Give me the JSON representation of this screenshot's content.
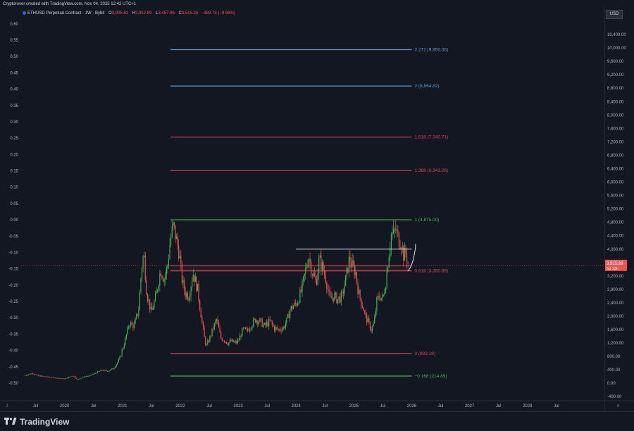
{
  "header": {
    "credit": "Cryptorover created with TradingView.com, Nov 04, 2025 12:42 UTC+1",
    "symbol": "ETHUSD Perpetual Contract · 1W · Bybit",
    "ohlc": [
      {
        "label": "O",
        "value": "3,905.61"
      },
      {
        "label": "H",
        "value": "3,912.89"
      },
      {
        "label": "L",
        "value": "3,457.96"
      },
      {
        "label": "C",
        "value": "3,515.26"
      }
    ],
    "change": "−389.75 (−9.98%)",
    "currency_badge": "USD"
  },
  "colors": {
    "background": "#131722",
    "up": "#26a69a",
    "up_bright": "#4caf50",
    "down": "#ef5350",
    "blue_level": "#5b9bd5",
    "red_level": "#e0435a",
    "green_level": "#4caf50",
    "white_level": "#e0e3eb",
    "current_price_tag": "#ef5350"
  },
  "corners": {
    "left": "2",
    "right": "6"
  },
  "footer": {
    "brand": "TradingView",
    "brand_icon": "tradingview-logo-icon"
  },
  "chart_data": {
    "type": "candlestick",
    "title": "ETHUSD Perpetual Contract · 1W · Bybit",
    "right_axis": {
      "unit": "USD",
      "range": [
        -500,
        10800
      ],
      "ticks": [
        "10,400.00",
        "10,000.00",
        "9,600.00",
        "9,200.00",
        "8,800.00",
        "8,400.00",
        "8,000.00",
        "7,600.00",
        "7,200.00",
        "6,800.00",
        "6,400.00",
        "6,000.00",
        "5,600.00",
        "5,200.00",
        "4,800.00",
        "4,400.00",
        "4,000.00",
        "3,600.00",
        "3,200.00",
        "2,800.00",
        "2,400.00",
        "2,000.00",
        "1,600.00",
        "1,200.00",
        "800.00",
        "400.00",
        "0.00",
        "-400.00"
      ],
      "tick_values": [
        10400,
        10000,
        9600,
        9200,
        8800,
        8400,
        8000,
        7600,
        7200,
        6800,
        6400,
        6000,
        5600,
        5200,
        4800,
        4400,
        4000,
        3600,
        3200,
        2800,
        2400,
        2000,
        1600,
        1200,
        800,
        400,
        0,
        -400
      ],
      "last_price_tag": "3,515.26",
      "last_price_countdown": "5d 13h",
      "last_price": 3515.26
    },
    "left_axis": {
      "ticks": [
        "0.60",
        "0.55",
        "0.50",
        "0.45",
        "0.40",
        "0.35",
        "0.30",
        "0.25",
        "0.20",
        "0.15",
        "0.10",
        "0.05",
        "0.00",
        "-0.05",
        "-0.10",
        "-0.15",
        "-0.20",
        "-0.25",
        "-0.30",
        "-0.35",
        "-0.40",
        "-0.45",
        "-0.50"
      ],
      "tick_values": [
        0.6,
        0.55,
        0.5,
        0.45,
        0.4,
        0.35,
        0.3,
        0.25,
        0.2,
        0.15,
        0.1,
        0.05,
        0.0,
        -0.05,
        -0.1,
        -0.15,
        -0.2,
        -0.25,
        -0.3,
        -0.35,
        -0.4,
        -0.45,
        -0.5
      ]
    },
    "x_axis": {
      "range": [
        2019.25,
        2029.33
      ],
      "ticks": [
        {
          "label": "Jul",
          "t": 2019.5
        },
        {
          "label": "2020",
          "t": 2020.0
        },
        {
          "label": "Jul",
          "t": 2020.5
        },
        {
          "label": "2021",
          "t": 2021.0
        },
        {
          "label": "Jul",
          "t": 2021.5
        },
        {
          "label": "2022",
          "t": 2022.0
        },
        {
          "label": "Jul",
          "t": 2022.5
        },
        {
          "label": "2023",
          "t": 2023.0
        },
        {
          "label": "Jul",
          "t": 2023.5
        },
        {
          "label": "2024",
          "t": 2024.0
        },
        {
          "label": "Jul",
          "t": 2024.5
        },
        {
          "label": "2025",
          "t": 2025.0
        },
        {
          "label": "Jul",
          "t": 2025.5
        },
        {
          "label": "2026",
          "t": 2026.0
        },
        {
          "label": "Jul",
          "t": 2026.5
        },
        {
          "label": "2027",
          "t": 2027.0
        },
        {
          "label": "Jul",
          "t": 2027.5
        },
        {
          "label": "2028",
          "t": 2028.0
        },
        {
          "label": "Jul",
          "t": 2028.5
        }
      ]
    },
    "fib_levels": [
      {
        "label": "2.272 (9,950.05)",
        "price": 9950.05,
        "color": "blue_level",
        "label_color": "blue_level"
      },
      {
        "label": "2 (8,864.82)",
        "price": 8864.82,
        "color": "blue_level",
        "label_color": "blue_level"
      },
      {
        "label": "1.618 (7,340.71)",
        "price": 7340.71,
        "color": "red_level",
        "label_color": "red_level"
      },
      {
        "label": "1.368 (6,343.26)",
        "price": 6343.26,
        "color": "red_level",
        "label_color": "red_level"
      },
      {
        "label": "1 (4,875.00)",
        "price": 4875.0,
        "color": "green_level",
        "label_color": "green_level"
      },
      {
        "label": "0.618 (3,350.89)",
        "price": 3350.89,
        "color": "red_level",
        "label_color": "red_level"
      },
      {
        "label": "0 (883.18)",
        "price": 883.18,
        "color": "red_level",
        "label_color": "red_level"
      },
      {
        "label": "−0.168 (214.89)",
        "price": 214.89,
        "color": "green_level",
        "label_color": "green_level"
      }
    ],
    "fib_range": {
      "t_start": 2021.83,
      "t_end": 2026.0
    },
    "support_band": {
      "top": 3515.0,
      "bottom": 3350.89
    },
    "resistance_line": {
      "price": 4000.0,
      "t_start": 2024.0,
      "t_end": 2026.0
    },
    "projection_path": [
      [
        2025.93,
        3350
      ],
      [
        2026.0,
        3450
      ],
      [
        2026.04,
        3800
      ],
      [
        2026.06,
        4150
      ]
    ],
    "weekly_close_path": [
      [
        2019.3,
        230
      ],
      [
        2019.45,
        300
      ],
      [
        2019.55,
        220
      ],
      [
        2019.7,
        190
      ],
      [
        2019.85,
        160
      ],
      [
        2020.0,
        130
      ],
      [
        2020.15,
        230
      ],
      [
        2020.22,
        110
      ],
      [
        2020.35,
        200
      ],
      [
        2020.45,
        230
      ],
      [
        2020.55,
        320
      ],
      [
        2020.65,
        390
      ],
      [
        2020.75,
        360
      ],
      [
        2020.85,
        450
      ],
      [
        2020.95,
        730
      ],
      [
        2021.05,
        1300
      ],
      [
        2021.12,
        1800
      ],
      [
        2021.2,
        1700
      ],
      [
        2021.28,
        2200
      ],
      [
        2021.33,
        3400
      ],
      [
        2021.37,
        3900
      ],
      [
        2021.42,
        2700
      ],
      [
        2021.5,
        2100
      ],
      [
        2021.58,
        2600
      ],
      [
        2021.66,
        3400
      ],
      [
        2021.72,
        3100
      ],
      [
        2021.78,
        3500
      ],
      [
        2021.83,
        4300
      ],
      [
        2021.88,
        4700
      ],
      [
        2021.93,
        4300
      ],
      [
        2021.98,
        3900
      ],
      [
        2022.03,
        3100
      ],
      [
        2022.08,
        2700
      ],
      [
        2022.15,
        2600
      ],
      [
        2022.22,
        3300
      ],
      [
        2022.3,
        2800
      ],
      [
        2022.37,
        1900
      ],
      [
        2022.42,
        1300
      ],
      [
        2022.45,
        1100
      ],
      [
        2022.52,
        1400
      ],
      [
        2022.58,
        1700
      ],
      [
        2022.63,
        1900
      ],
      [
        2022.7,
        1350
      ],
      [
        2022.75,
        1300
      ],
      [
        2022.82,
        1200
      ],
      [
        2022.88,
        1250
      ],
      [
        2022.95,
        1200
      ],
      [
        2023.0,
        1250
      ],
      [
        2023.08,
        1600
      ],
      [
        2023.15,
        1550
      ],
      [
        2023.25,
        1800
      ],
      [
        2023.3,
        1900
      ],
      [
        2023.38,
        1850
      ],
      [
        2023.45,
        1700
      ],
      [
        2023.55,
        1850
      ],
      [
        2023.62,
        1650
      ],
      [
        2023.7,
        1600
      ],
      [
        2023.78,
        1650
      ],
      [
        2023.85,
        1900
      ],
      [
        2023.9,
        2200
      ],
      [
        2023.95,
        2300
      ],
      [
        2024.02,
        2400
      ],
      [
        2024.1,
        2800
      ],
      [
        2024.18,
        3500
      ],
      [
        2024.22,
        3800
      ],
      [
        2024.28,
        3300
      ],
      [
        2024.35,
        3000
      ],
      [
        2024.4,
        3700
      ],
      [
        2024.45,
        3500
      ],
      [
        2024.52,
        3100
      ],
      [
        2024.58,
        2500
      ],
      [
        2024.65,
        2600
      ],
      [
        2024.72,
        2500
      ],
      [
        2024.8,
        2600
      ],
      [
        2024.87,
        3200
      ],
      [
        2024.92,
        3700
      ],
      [
        2024.97,
        3500
      ],
      [
        2025.03,
        3300
      ],
      [
        2025.08,
        2700
      ],
      [
        2025.15,
        2300
      ],
      [
        2025.2,
        2000
      ],
      [
        2025.25,
        1800
      ],
      [
        2025.3,
        1600
      ],
      [
        2025.35,
        1800
      ],
      [
        2025.4,
        2500
      ],
      [
        2025.45,
        2600
      ],
      [
        2025.5,
        2500
      ],
      [
        2025.55,
        3000
      ],
      [
        2025.6,
        3800
      ],
      [
        2025.65,
        4500
      ],
      [
        2025.68,
        4400
      ],
      [
        2025.72,
        4600
      ],
      [
        2025.77,
        4300
      ],
      [
        2025.82,
        4200
      ],
      [
        2025.86,
        3800
      ],
      [
        2025.9,
        3900
      ],
      [
        2025.94,
        3515
      ]
    ]
  }
}
